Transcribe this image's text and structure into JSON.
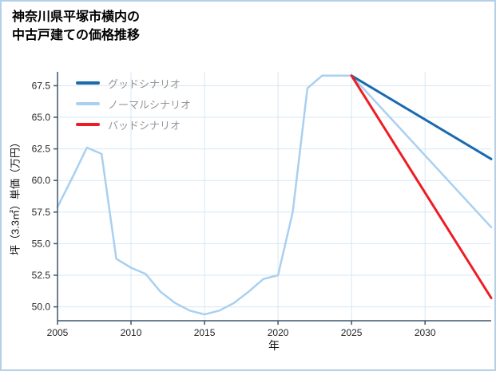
{
  "page": {
    "title_line1": "神奈川県平塚市横内の",
    "title_line2": "中古戸建ての価格推移"
  },
  "chart_data": {
    "type": "line",
    "title": "神奈川県平塚市横内の中古戸建ての価格推移",
    "xlabel": "年",
    "ylabel": "坪（3.3㎡）単価（万円）",
    "xlim": [
      2005,
      2034.5
    ],
    "ylim": [
      48.9,
      68.6
    ],
    "x_ticks": [
      2005,
      2010,
      2015,
      2020,
      2025,
      2030
    ],
    "y_ticks": [
      50.0,
      52.5,
      55.0,
      57.5,
      60.0,
      62.5,
      65.0,
      67.5
    ],
    "grid": true,
    "legend_position": "upper-left",
    "axis_color": "#3d566e",
    "grid_color": "#d6e7f5",
    "tick_color": "#262626",
    "series": [
      {
        "name": "グッドシナリオ",
        "color": "#1a6ab0",
        "width": 3,
        "z": 1,
        "x": [
          2025,
          2034.5
        ],
        "y": [
          68.3,
          61.7
        ]
      },
      {
        "name": "ノーマルシナリオ",
        "color": "#a9d0f0",
        "width": 2.5,
        "z": 0,
        "x": [
          2005,
          2006,
          2007,
          2008,
          2009,
          2010,
          2011,
          2012,
          2013,
          2014,
          2015,
          2016,
          2017,
          2018,
          2019,
          2020,
          2021,
          2022,
          2023,
          2024,
          2025,
          2034.5
        ],
        "y": [
          57.9,
          60.2,
          62.6,
          62.1,
          53.8,
          53.1,
          52.6,
          51.2,
          50.3,
          49.7,
          49.4,
          49.7,
          50.3,
          51.2,
          52.2,
          52.5,
          57.5,
          67.3,
          68.3,
          68.3,
          68.3,
          56.3
        ]
      },
      {
        "name": "バッドシナリオ",
        "color": "#ee1d23",
        "width": 3,
        "z": 2,
        "x": [
          2025,
          2034.5
        ],
        "y": [
          68.3,
          50.7
        ]
      }
    ]
  },
  "legend": {
    "items": [
      {
        "label": "グッドシナリオ",
        "color": "#1a6ab0"
      },
      {
        "label": "ノーマルシナリオ",
        "color": "#a9d0f0"
      },
      {
        "label": "バッドシナリオ",
        "color": "#ee1d23"
      }
    ]
  }
}
